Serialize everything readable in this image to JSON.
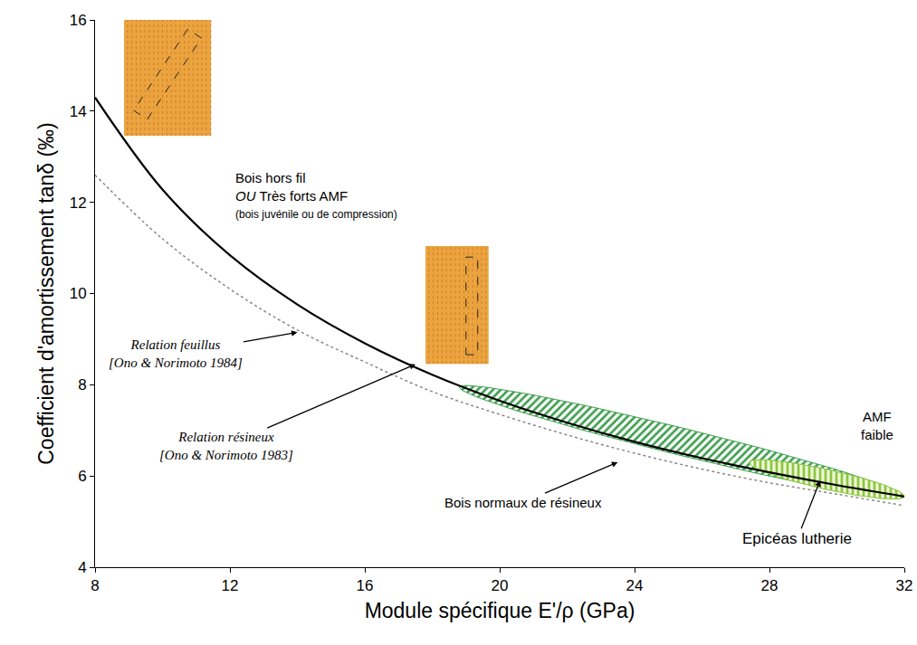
{
  "chart_data": {
    "type": "line",
    "x_title": "Module spécifique E'/ρ (GPa)",
    "y_title": "Coefficient d'amortissement tanδ (‰)",
    "xlim": [
      8,
      32
    ],
    "xticks": [
      8,
      12,
      16,
      20,
      24,
      28,
      32
    ],
    "ylim": [
      4,
      16
    ],
    "yticks": [
      4,
      6,
      8,
      10,
      12,
      14,
      16
    ],
    "grid": false,
    "series": [
      {
        "name": "Relation feuillus",
        "source": "[Ono & Norimoto 1984]",
        "color": "#888888",
        "line_style": "dot",
        "x": [
          8,
          10,
          12,
          14,
          16,
          18,
          20,
          22,
          24,
          26,
          28,
          30,
          32
        ],
        "values": [
          12.6,
          11.2,
          10.1,
          9.2,
          8.5,
          7.85,
          7.35,
          6.9,
          6.5,
          6.15,
          5.85,
          5.6,
          5.35
        ]
      },
      {
        "name": "Relation résineux",
        "source": "[Ono & Norimoto 1983]",
        "color": "#000000",
        "line_style": "solid",
        "x": [
          8,
          10,
          12,
          14,
          16,
          18,
          20,
          22,
          24,
          26,
          28,
          30,
          32
        ],
        "values": [
          14.3,
          12.28,
          10.84,
          9.76,
          8.91,
          8.22,
          7.65,
          7.17,
          6.75,
          6.39,
          6.08,
          5.8,
          5.55
        ]
      }
    ],
    "regions": [
      {
        "name": "Bois normaux de résineux",
        "color": "#3f9f4f",
        "x": [
          18.8,
          32
        ],
        "y": [
          7.95,
          5.55
        ]
      },
      {
        "name": "Epicéas lutherie",
        "color": "#8cc63f",
        "x": [
          27.4,
          32
        ],
        "y": [
          6.3,
          5.55
        ]
      }
    ],
    "annotations": [
      {
        "text": [
          "Bois hors fil",
          "OU Très forts AMF",
          "(bois juvénile ou de compression)"
        ]
      },
      {
        "text": [
          "AMF",
          "faible"
        ]
      }
    ]
  }
}
